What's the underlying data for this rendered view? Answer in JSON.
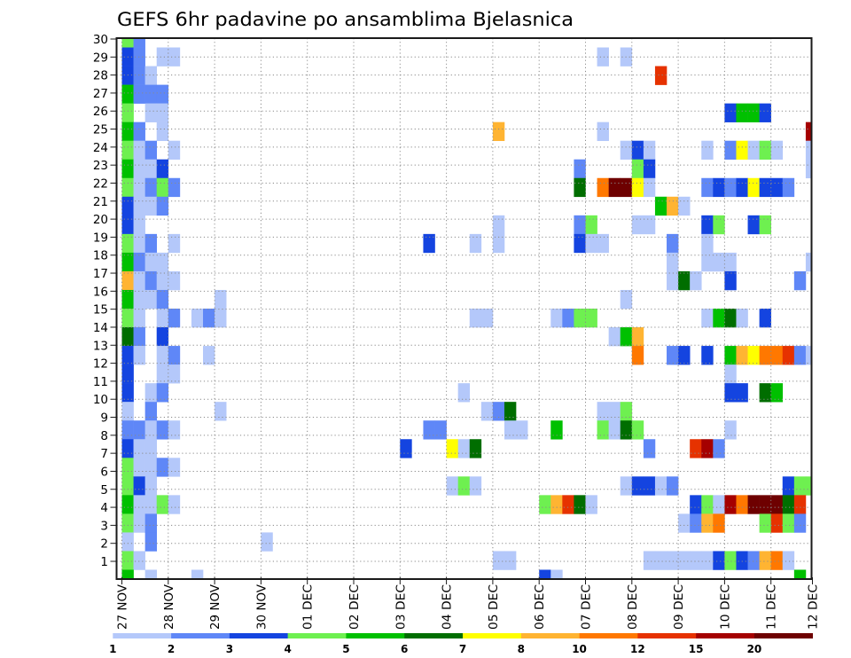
{
  "chart_data": {
    "type": "heatmap",
    "title": "GEFS 6hr padavine po ansamblima Bjelasnica",
    "xlabel": "",
    "ylabel": "",
    "grid": true,
    "x_tick_labels": [
      "27 NOV",
      "28 NOV",
      "29 NOV",
      "30 NOV",
      "01 DEC",
      "02 DEC",
      "03 DEC",
      "04 DEC",
      "05 DEC",
      "06 DEC",
      "07 DEC",
      "08 DEC",
      "09 DEC",
      "10 DEC",
      "11 DEC",
      "12 DEC"
    ],
    "y_tick_labels": [
      "1",
      "2",
      "3",
      "4",
      "5",
      "6",
      "7",
      "8",
      "9",
      "10",
      "11",
      "12",
      "13",
      "14",
      "15",
      "16",
      "17",
      "18",
      "19",
      "20",
      "21",
      "22",
      "23",
      "24",
      "25",
      "26",
      "27",
      "28",
      "29",
      "30"
    ],
    "time_step_hours": 6,
    "colorbar": {
      "position": "bottom",
      "levels": [
        1,
        2,
        3,
        4,
        5,
        6,
        7,
        8,
        10,
        12,
        15,
        20
      ],
      "colors": [
        "#b4c8fa",
        "#5f87f7",
        "#1444e0",
        "#6ef050",
        "#00c000",
        "#006e00",
        "#ffff00",
        "#ffb432",
        "#ff7800",
        "#e63200",
        "#a50000",
        "#6e0000"
      ]
    },
    "rows": [
      {
        "member": 30,
        "cells": [
          [
            0,
            4
          ],
          [
            1,
            2
          ]
        ]
      },
      {
        "member": 29,
        "cells": [
          [
            0,
            3
          ],
          [
            1,
            2
          ],
          [
            3,
            1
          ],
          [
            4,
            1
          ],
          [
            41,
            1
          ],
          [
            43,
            1
          ]
        ]
      },
      {
        "member": 28,
        "cells": [
          [
            0,
            3
          ],
          [
            1,
            2
          ],
          [
            2,
            1
          ],
          [
            46,
            12
          ]
        ]
      },
      {
        "member": 27,
        "cells": [
          [
            0,
            5
          ],
          [
            1,
            2
          ],
          [
            2,
            2
          ],
          [
            3,
            2
          ]
        ]
      },
      {
        "member": 26,
        "cells": [
          [
            0,
            4
          ],
          [
            2,
            1
          ],
          [
            3,
            1
          ],
          [
            52,
            3
          ],
          [
            53,
            5
          ],
          [
            54,
            5
          ],
          [
            55,
            3
          ]
        ]
      },
      {
        "member": 25,
        "cells": [
          [
            0,
            5
          ],
          [
            1,
            2
          ],
          [
            3,
            1
          ],
          [
            32,
            8
          ],
          [
            41,
            1
          ],
          [
            59,
            15
          ]
        ]
      },
      {
        "member": 24,
        "cells": [
          [
            0,
            4
          ],
          [
            1,
            1
          ],
          [
            2,
            2
          ],
          [
            4,
            1
          ],
          [
            43,
            1
          ],
          [
            44,
            3
          ],
          [
            45,
            1
          ],
          [
            50,
            1
          ],
          [
            52,
            2
          ],
          [
            53,
            7
          ],
          [
            54,
            1
          ],
          [
            55,
            4
          ],
          [
            56,
            1
          ],
          [
            59,
            1
          ]
        ]
      },
      {
        "member": 23,
        "cells": [
          [
            0,
            5
          ],
          [
            1,
            1
          ],
          [
            2,
            1
          ],
          [
            3,
            3
          ],
          [
            39,
            2
          ],
          [
            44,
            4
          ],
          [
            45,
            3
          ],
          [
            59,
            1
          ]
        ]
      },
      {
        "member": 22,
        "cells": [
          [
            0,
            4
          ],
          [
            1,
            1
          ],
          [
            2,
            2
          ],
          [
            3,
            4
          ],
          [
            4,
            2
          ],
          [
            39,
            6
          ],
          [
            41,
            10
          ],
          [
            42,
            20
          ],
          [
            43,
            20
          ],
          [
            44,
            7
          ],
          [
            45,
            1
          ],
          [
            50,
            2
          ],
          [
            51,
            3
          ],
          [
            52,
            2
          ],
          [
            53,
            3
          ],
          [
            54,
            7
          ],
          [
            55,
            3
          ],
          [
            56,
            3
          ],
          [
            57,
            2
          ]
        ]
      },
      {
        "member": 21,
        "cells": [
          [
            0,
            3
          ],
          [
            1,
            1
          ],
          [
            2,
            1
          ],
          [
            3,
            2
          ],
          [
            46,
            5
          ],
          [
            47,
            8
          ],
          [
            48,
            1
          ]
        ]
      },
      {
        "member": 20,
        "cells": [
          [
            0,
            3
          ],
          [
            1,
            1
          ],
          [
            32,
            1
          ],
          [
            39,
            2
          ],
          [
            40,
            4
          ],
          [
            44,
            1
          ],
          [
            45,
            1
          ],
          [
            50,
            3
          ],
          [
            51,
            4
          ],
          [
            54,
            3
          ],
          [
            55,
            4
          ]
        ]
      },
      {
        "member": 19,
        "cells": [
          [
            0,
            4
          ],
          [
            1,
            1
          ],
          [
            2,
            2
          ],
          [
            4,
            1
          ],
          [
            26,
            3
          ],
          [
            30,
            1
          ],
          [
            32,
            1
          ],
          [
            39,
            3
          ],
          [
            40,
            1
          ],
          [
            41,
            1
          ],
          [
            47,
            2
          ],
          [
            50,
            1
          ]
        ]
      },
      {
        "member": 18,
        "cells": [
          [
            0,
            5
          ],
          [
            1,
            2
          ],
          [
            2,
            1
          ],
          [
            3,
            1
          ],
          [
            47,
            1
          ],
          [
            50,
            1
          ],
          [
            51,
            1
          ],
          [
            52,
            1
          ],
          [
            59,
            1
          ]
        ]
      },
      {
        "member": 17,
        "cells": [
          [
            0,
            8
          ],
          [
            1,
            1
          ],
          [
            2,
            2
          ],
          [
            3,
            1
          ],
          [
            4,
            1
          ],
          [
            47,
            1
          ],
          [
            48,
            6
          ],
          [
            49,
            1
          ],
          [
            52,
            3
          ],
          [
            58,
            2
          ]
        ]
      },
      {
        "member": 16,
        "cells": [
          [
            0,
            5
          ],
          [
            1,
            1
          ],
          [
            2,
            1
          ],
          [
            3,
            2
          ],
          [
            8,
            1
          ],
          [
            43,
            1
          ]
        ]
      },
      {
        "member": 15,
        "cells": [
          [
            0,
            4
          ],
          [
            1,
            1
          ],
          [
            3,
            1
          ],
          [
            4,
            2
          ],
          [
            6,
            1
          ],
          [
            7,
            2
          ],
          [
            8,
            1
          ],
          [
            30,
            1
          ],
          [
            31,
            1
          ],
          [
            37,
            1
          ],
          [
            38,
            2
          ],
          [
            39,
            4
          ],
          [
            40,
            4
          ],
          [
            50,
            1
          ],
          [
            51,
            5
          ],
          [
            52,
            6
          ],
          [
            53,
            1
          ],
          [
            55,
            3
          ]
        ]
      },
      {
        "member": 14,
        "cells": [
          [
            0,
            6
          ],
          [
            1,
            2
          ],
          [
            3,
            3
          ],
          [
            42,
            1
          ],
          [
            43,
            5
          ],
          [
            44,
            8
          ]
        ]
      },
      {
        "member": 13,
        "cells": [
          [
            0,
            3
          ],
          [
            1,
            1
          ],
          [
            3,
            1
          ],
          [
            4,
            2
          ],
          [
            7,
            1
          ],
          [
            44,
            10
          ],
          [
            47,
            2
          ],
          [
            48,
            3
          ],
          [
            50,
            3
          ],
          [
            52,
            5
          ],
          [
            53,
            8
          ],
          [
            54,
            7
          ],
          [
            55,
            10
          ],
          [
            56,
            10
          ],
          [
            57,
            12
          ],
          [
            58,
            2
          ],
          [
            59,
            1
          ]
        ]
      },
      {
        "member": 12,
        "cells": [
          [
            0,
            3
          ],
          [
            3,
            1
          ],
          [
            4,
            1
          ],
          [
            52,
            1
          ]
        ]
      },
      {
        "member": 11,
        "cells": [
          [
            0,
            3
          ],
          [
            2,
            1
          ],
          [
            3,
            2
          ],
          [
            29,
            1
          ],
          [
            52,
            3
          ],
          [
            53,
            3
          ],
          [
            55,
            6
          ],
          [
            56,
            5
          ]
        ]
      },
      {
        "member": 10,
        "cells": [
          [
            0,
            1
          ],
          [
            2,
            2
          ],
          [
            8,
            1
          ],
          [
            31,
            1
          ],
          [
            32,
            2
          ],
          [
            33,
            6
          ],
          [
            41,
            1
          ],
          [
            42,
            1
          ],
          [
            43,
            4
          ]
        ]
      },
      {
        "member": 9,
        "cells": [
          [
            0,
            2
          ],
          [
            1,
            2
          ],
          [
            2,
            1
          ],
          [
            3,
            2
          ],
          [
            4,
            1
          ],
          [
            26,
            2
          ],
          [
            27,
            2
          ],
          [
            33,
            1
          ],
          [
            34,
            1
          ],
          [
            37,
            5
          ],
          [
            41,
            4
          ],
          [
            42,
            1
          ],
          [
            43,
            6
          ],
          [
            44,
            4
          ],
          [
            52,
            1
          ]
        ]
      },
      {
        "member": 8,
        "cells": [
          [
            0,
            3
          ],
          [
            1,
            1
          ],
          [
            2,
            1
          ],
          [
            24,
            3
          ],
          [
            28,
            7
          ],
          [
            29,
            1
          ],
          [
            30,
            6
          ],
          [
            45,
            2
          ],
          [
            49,
            12
          ],
          [
            50,
            15
          ],
          [
            51,
            2
          ]
        ]
      },
      {
        "member": 7,
        "cells": [
          [
            0,
            4
          ],
          [
            1,
            1
          ],
          [
            2,
            1
          ],
          [
            3,
            2
          ],
          [
            4,
            1
          ]
        ]
      },
      {
        "member": 6,
        "cells": [
          [
            0,
            4
          ],
          [
            1,
            3
          ],
          [
            2,
            1
          ],
          [
            28,
            1
          ],
          [
            29,
            4
          ],
          [
            30,
            1
          ],
          [
            43,
            1
          ],
          [
            44,
            3
          ],
          [
            45,
            3
          ],
          [
            46,
            1
          ],
          [
            47,
            2
          ],
          [
            57,
            3
          ],
          [
            58,
            4
          ],
          [
            59,
            4
          ]
        ]
      },
      {
        "member": 5,
        "cells": [
          [
            0,
            5
          ],
          [
            1,
            1
          ],
          [
            2,
            1
          ],
          [
            3,
            4
          ],
          [
            4,
            1
          ],
          [
            36,
            4
          ],
          [
            37,
            8
          ],
          [
            38,
            12
          ],
          [
            39,
            6
          ],
          [
            40,
            1
          ],
          [
            49,
            3
          ],
          [
            50,
            4
          ],
          [
            51,
            1
          ],
          [
            52,
            15
          ],
          [
            53,
            10
          ],
          [
            54,
            20
          ],
          [
            55,
            20
          ],
          [
            56,
            20
          ],
          [
            57,
            6
          ],
          [
            58,
            12
          ]
        ]
      },
      {
        "member": 4,
        "cells": [
          [
            0,
            4
          ],
          [
            1,
            1
          ],
          [
            2,
            2
          ],
          [
            48,
            1
          ],
          [
            49,
            2
          ],
          [
            50,
            8
          ],
          [
            51,
            10
          ],
          [
            55,
            4
          ],
          [
            56,
            12
          ],
          [
            57,
            4
          ],
          [
            58,
            2
          ]
        ]
      },
      {
        "member": 3,
        "cells": [
          [
            0,
            1
          ],
          [
            2,
            2
          ],
          [
            12,
            1
          ]
        ]
      },
      {
        "member": 2,
        "cells": [
          [
            0,
            4
          ],
          [
            1,
            1
          ],
          [
            32,
            1
          ],
          [
            33,
            1
          ],
          [
            45,
            1
          ],
          [
            46,
            1
          ],
          [
            47,
            1
          ],
          [
            48,
            1
          ],
          [
            49,
            1
          ],
          [
            50,
            1
          ],
          [
            51,
            3
          ],
          [
            52,
            4
          ],
          [
            53,
            3
          ],
          [
            54,
            2
          ],
          [
            55,
            8
          ],
          [
            56,
            10
          ],
          [
            57,
            1
          ]
        ]
      },
      {
        "member": 1,
        "cells": [
          [
            0,
            5
          ],
          [
            2,
            1
          ],
          [
            6,
            1
          ],
          [
            36,
            3
          ],
          [
            37,
            1
          ],
          [
            58,
            5
          ]
        ]
      }
    ]
  }
}
